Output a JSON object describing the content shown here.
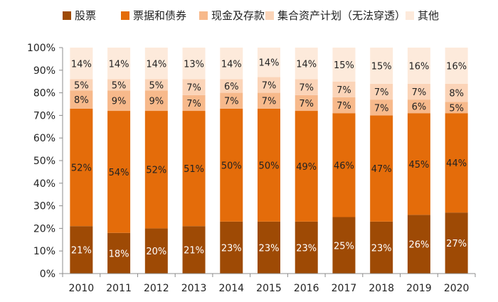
{
  "chart_data": {
    "type": "bar",
    "stacked": true,
    "categories": [
      "2010",
      "2011",
      "2012",
      "2013",
      "2014",
      "2015",
      "2016",
      "2017",
      "2018",
      "2019",
      "2020"
    ],
    "series": [
      {
        "name": "股票",
        "color": "#9e4a05",
        "values": [
          21,
          18,
          20,
          21,
          23,
          23,
          23,
          25,
          23,
          26,
          27
        ],
        "labels": [
          "21%",
          "18%",
          "20%",
          "21%",
          "23%",
          "23%",
          "23%",
          "25%",
          "23%",
          "26%",
          "27%"
        ]
      },
      {
        "name": "票据和债券",
        "color": "#e46c0a",
        "values": [
          52,
          54,
          52,
          51,
          50,
          50,
          49,
          46,
          47,
          45,
          44
        ],
        "labels": [
          "52%",
          "54%",
          "52%",
          "51%",
          "50%",
          "50%",
          "49%",
          "46%",
          "47%",
          "45%",
          "44%"
        ]
      },
      {
        "name": "现金及存款",
        "color": "#f7b98b",
        "values": [
          8,
          9,
          9,
          7,
          7,
          7,
          7,
          7,
          7,
          6,
          5
        ],
        "labels": [
          "8%",
          "9%",
          "9%",
          "7%",
          "7%",
          "7%",
          "7%",
          "7%",
          "7%",
          "6%",
          "5%"
        ]
      },
      {
        "name": "集合资产计划（无法穿透）",
        "color": "#fbd4b8",
        "values": [
          5,
          5,
          5,
          7,
          6,
          7,
          7,
          7,
          7,
          7,
          8
        ],
        "labels": [
          "5%",
          "5%",
          "5%",
          "7%",
          "6%",
          "7%",
          "7%",
          "7%",
          "7%",
          "7%",
          "8%"
        ]
      },
      {
        "name": "其他",
        "color": "#fdeadb",
        "values": [
          14,
          14,
          14,
          13,
          14,
          14,
          14,
          15,
          15,
          16,
          16
        ],
        "labels": [
          "14%",
          "14%",
          "14%",
          "13%",
          "14%",
          "14%",
          "14%",
          "15%",
          "15%",
          "16%",
          "16%"
        ]
      }
    ],
    "y_ticks": [
      "0%",
      "10%",
      "20%",
      "30%",
      "40%",
      "50%",
      "60%",
      "70%",
      "80%",
      "90%",
      "100%"
    ],
    "ylim": [
      0,
      100
    ],
    "legend_position": "top",
    "grid": false,
    "title": "",
    "xlabel": "",
    "ylabel": ""
  }
}
